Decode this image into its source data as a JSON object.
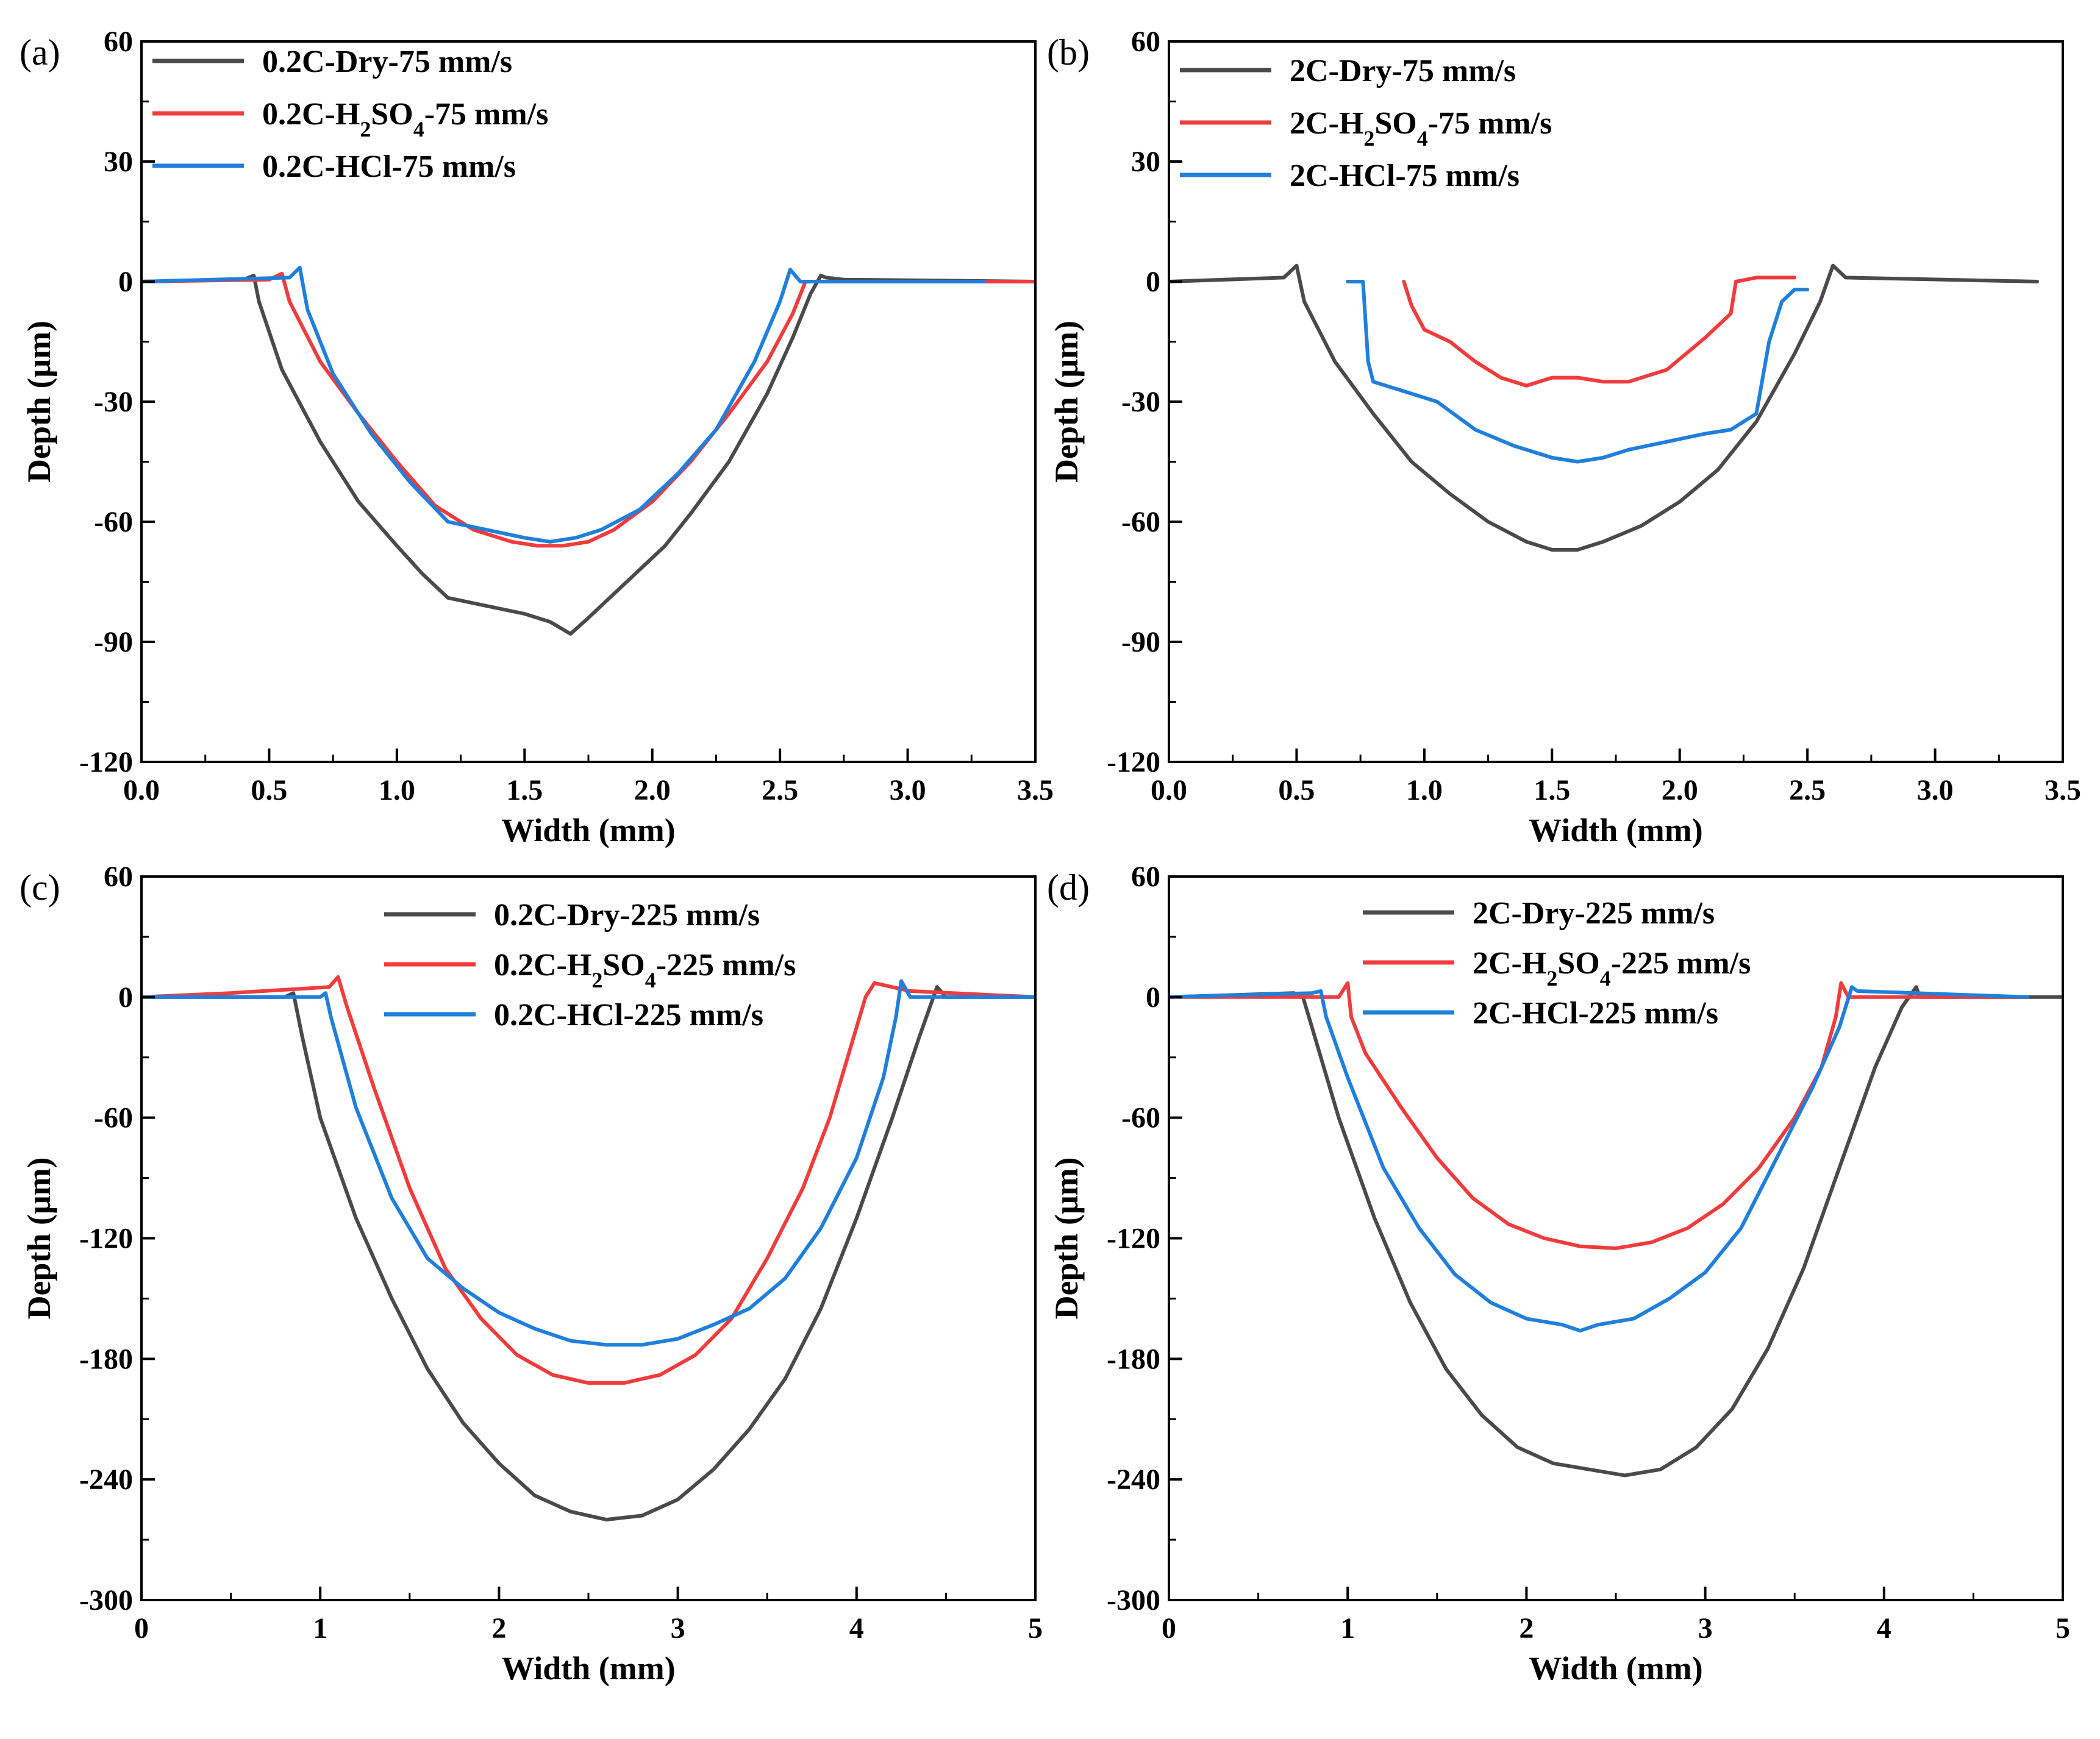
{
  "chart_data": [
    {
      "type": "line",
      "panel_label": "(a)",
      "xlabel": "Width (mm)",
      "ylabel": "Depth (μm)",
      "xlim": [
        0,
        3.5
      ],
      "ylim": [
        -120,
        60
      ],
      "xticks": [
        "0.0",
        "0.5",
        "1.0",
        "1.5",
        "2.0",
        "2.5",
        "3.0",
        "3.5"
      ],
      "xtick_values": [
        0,
        0.5,
        1.0,
        1.5,
        2.0,
        2.5,
        3.0,
        3.5
      ],
      "yticks": [
        "60",
        "30",
        "0",
        "-30",
        "-60",
        "-90",
        "-120"
      ],
      "ytick_values": [
        60,
        30,
        0,
        -30,
        -60,
        -90,
        -120
      ],
      "legend_position": "top-left",
      "series": [
        {
          "name": "0.2C-Dry-75 mm/s",
          "label_main": "0.2C-Dry-75 mm/s",
          "label_sub1": "",
          "label_mid": "",
          "label_sub2": "",
          "label_tail": "",
          "color": "#4a4a4a",
          "x": [
            0,
            0.4,
            0.44,
            0.46,
            0.55,
            0.7,
            0.85,
            1.0,
            1.1,
            1.2,
            1.35,
            1.5,
            1.6,
            1.68,
            1.75,
            1.85,
            1.95,
            2.05,
            2.15,
            2.3,
            2.45,
            2.55,
            2.62,
            2.66,
            2.68,
            2.75,
            3.5
          ],
          "y": [
            0,
            0.5,
            1.5,
            -5,
            -22,
            -40,
            -55,
            -66,
            -73,
            -79,
            -81,
            -83,
            -85,
            -88,
            -84,
            -78,
            -72,
            -66,
            -58,
            -45,
            -28,
            -14,
            -3,
            1.5,
            1,
            0.5,
            0
          ]
        },
        {
          "name": "0.2C-H2SO4-75 mm/s",
          "label_main": "0.2C-H",
          "label_sub1": "2",
          "label_mid": "SO",
          "label_sub2": "4",
          "label_tail": "-75 mm/s",
          "color": "#f03c3c",
          "x": [
            0,
            0.5,
            0.55,
            0.58,
            0.7,
            0.85,
            1.0,
            1.15,
            1.3,
            1.45,
            1.55,
            1.65,
            1.75,
            1.85,
            2.0,
            2.15,
            2.3,
            2.45,
            2.55,
            2.6,
            2.65,
            3.5
          ],
          "y": [
            0,
            0.5,
            2,
            -5,
            -20,
            -33,
            -45,
            -56,
            -62,
            -65,
            -66,
            -66,
            -65,
            -62,
            -55,
            -45,
            -33,
            -20,
            -8,
            0,
            0,
            0
          ]
        },
        {
          "name": "0.2C-HCl-75 mm/s",
          "label_main": "0.2C-HCl-75 mm/s",
          "label_sub1": "",
          "label_mid": "",
          "label_sub2": "",
          "label_tail": "",
          "color": "#1f7fdb",
          "x": [
            0,
            0.58,
            0.62,
            0.65,
            0.75,
            0.9,
            1.05,
            1.2,
            1.35,
            1.5,
            1.6,
            1.7,
            1.8,
            1.95,
            2.1,
            2.25,
            2.4,
            2.5,
            2.54,
            2.58,
            3.3
          ],
          "y": [
            0,
            1,
            3.5,
            -7,
            -23,
            -38,
            -50,
            -60,
            -62,
            -64,
            -65,
            -64,
            -62,
            -57,
            -48,
            -37,
            -20,
            -5,
            3,
            0,
            0
          ]
        }
      ]
    },
    {
      "type": "line",
      "panel_label": "(b)",
      "xlabel": "Width (mm)",
      "ylabel": "Depth (μm)",
      "xlim": [
        0,
        3.5
      ],
      "ylim": [
        -120,
        60
      ],
      "xticks": [
        "0.0",
        "0.5",
        "1.0",
        "1.5",
        "2.0",
        "2.5",
        "3.0",
        "3.5"
      ],
      "xtick_values": [
        0,
        0.5,
        1.0,
        1.5,
        2.0,
        2.5,
        3.0,
        3.5
      ],
      "yticks": [
        "60",
        "30",
        "0",
        "-30",
        "-60",
        "-90",
        "-120"
      ],
      "ytick_values": [
        60,
        30,
        0,
        -30,
        -60,
        -90,
        -120
      ],
      "legend_position": "top-left",
      "series": [
        {
          "name": "2C-Dry-75 mm/s",
          "label_main": "2C-Dry-75 mm/s",
          "label_sub1": "",
          "label_mid": "",
          "label_sub2": "",
          "label_tail": "",
          "color": "#4a4a4a",
          "x": [
            0,
            0.45,
            0.5,
            0.53,
            0.65,
            0.8,
            0.95,
            1.1,
            1.25,
            1.4,
            1.5,
            1.6,
            1.7,
            1.85,
            2.0,
            2.15,
            2.3,
            2.45,
            2.55,
            2.6,
            2.65,
            3.4
          ],
          "y": [
            0,
            1,
            4,
            -5,
            -20,
            -33,
            -45,
            -53,
            -60,
            -65,
            -67,
            -67,
            -65,
            -61,
            -55,
            -47,
            -35,
            -18,
            -5,
            4,
            1,
            0
          ]
        },
        {
          "name": "2C-H2SO4-75 mm/s",
          "label_main": "2C-H",
          "label_sub1": "2",
          "label_mid": "SO",
          "label_sub2": "4",
          "label_tail": "-75 mm/s",
          "color": "#f03c3c",
          "x": [
            0.92,
            0.95,
            1.0,
            1.1,
            1.2,
            1.3,
            1.4,
            1.5,
            1.6,
            1.7,
            1.8,
            1.95,
            2.1,
            2.2,
            2.22,
            2.3,
            2.45
          ],
          "y": [
            0,
            -6,
            -12,
            -15,
            -20,
            -24,
            -26,
            -24,
            -24,
            -25,
            -25,
            -22,
            -14,
            -8,
            0,
            1,
            1
          ]
        },
        {
          "name": "2C-HCl-75 mm/s",
          "label_main": "2C-HCl-75 mm/s",
          "label_sub1": "",
          "label_mid": "",
          "label_sub2": "",
          "label_tail": "",
          "color": "#1f7fdb",
          "x": [
            0.7,
            0.76,
            0.78,
            0.8,
            0.9,
            1.05,
            1.2,
            1.35,
            1.5,
            1.6,
            1.7,
            1.8,
            1.95,
            2.1,
            2.2,
            2.25,
            2.3,
            2.35,
            2.4,
            2.45,
            2.5
          ],
          "y": [
            0,
            0,
            -20,
            -25,
            -27,
            -30,
            -37,
            -41,
            -44,
            -45,
            -44,
            -42,
            -40,
            -38,
            -37,
            -35,
            -33,
            -15,
            -5,
            -2,
            -2
          ]
        }
      ]
    },
    {
      "type": "line",
      "panel_label": "(c)",
      "xlabel": "Width (mm)",
      "ylabel": "Depth (μm)",
      "xlim": [
        0,
        5
      ],
      "ylim": [
        -300,
        60
      ],
      "xticks": [
        "0",
        "1",
        "2",
        "3",
        "4",
        "5"
      ],
      "xtick_values": [
        0,
        1,
        2,
        3,
        4,
        5
      ],
      "yticks": [
        "60",
        "0",
        "-60",
        "-120",
        "-180",
        "-240",
        "-300"
      ],
      "ytick_values": [
        60,
        0,
        -60,
        -120,
        -180,
        -240,
        -300
      ],
      "legend_position": "top-center",
      "series": [
        {
          "name": "0.2C-Dry-225 mm/s",
          "label_main": "0.2C-Dry-225 mm/s",
          "label_sub1": "",
          "label_mid": "",
          "label_sub2": "",
          "label_tail": "",
          "color": "#4a4a4a",
          "x": [
            0,
            0.8,
            0.85,
            0.9,
            1.0,
            1.2,
            1.4,
            1.6,
            1.8,
            2.0,
            2.2,
            2.4,
            2.6,
            2.8,
            3.0,
            3.2,
            3.4,
            3.6,
            3.8,
            4.0,
            4.2,
            4.35,
            4.45,
            4.5,
            5
          ],
          "y": [
            0,
            0,
            2,
            -20,
            -60,
            -110,
            -150,
            -185,
            -212,
            -232,
            -248,
            -256,
            -260,
            -258,
            -250,
            -235,
            -215,
            -190,
            -155,
            -110,
            -60,
            -20,
            5,
            0,
            0
          ]
        },
        {
          "name": "0.2C-H2SO4-225 mm/s",
          "label_main": "0.2C-H",
          "label_sub1": "2",
          "label_mid": "SO",
          "label_sub2": "4",
          "label_tail": "-225 mm/s",
          "color": "#f03c3c",
          "x": [
            0,
            0.5,
            1.05,
            1.1,
            1.15,
            1.3,
            1.5,
            1.7,
            1.9,
            2.1,
            2.3,
            2.5,
            2.7,
            2.9,
            3.1,
            3.3,
            3.5,
            3.7,
            3.85,
            3.95,
            4.05,
            4.1,
            4.3,
            5
          ],
          "y": [
            0,
            2,
            5,
            10,
            -5,
            -45,
            -95,
            -135,
            -160,
            -178,
            -188,
            -192,
            -192,
            -188,
            -178,
            -160,
            -130,
            -95,
            -60,
            -30,
            0,
            7,
            3,
            0
          ]
        },
        {
          "name": "0.2C-HCl-225 mm/s",
          "label_main": "0.2C-HCl-225 mm/s",
          "label_sub1": "",
          "label_mid": "",
          "label_sub2": "",
          "label_tail": "",
          "color": "#1f7fdb",
          "x": [
            0,
            1.0,
            1.03,
            1.06,
            1.2,
            1.4,
            1.6,
            1.8,
            2.0,
            2.2,
            2.4,
            2.6,
            2.8,
            3.0,
            3.2,
            3.4,
            3.6,
            3.8,
            4.0,
            4.15,
            4.22,
            4.25,
            4.3,
            5
          ],
          "y": [
            0,
            0,
            2,
            -10,
            -55,
            -100,
            -130,
            -145,
            -157,
            -165,
            -171,
            -173,
            -173,
            -170,
            -163,
            -155,
            -140,
            -115,
            -80,
            -40,
            -10,
            8,
            0,
            0
          ]
        }
      ]
    },
    {
      "type": "line",
      "panel_label": "(d)",
      "xlabel": "Width (mm)",
      "ylabel": "Depth (μm)",
      "xlim": [
        0,
        5
      ],
      "ylim": [
        -300,
        60
      ],
      "xticks": [
        "0",
        "1",
        "2",
        "3",
        "4",
        "5"
      ],
      "xtick_values": [
        0,
        1,
        2,
        3,
        4,
        5
      ],
      "yticks": [
        "60",
        "0",
        "-60",
        "-120",
        "-180",
        "-240",
        "-300"
      ],
      "ytick_values": [
        60,
        0,
        -60,
        -120,
        -180,
        -240,
        -300
      ],
      "legend_position": "top-center",
      "series": [
        {
          "name": "2C-Dry-225 mm/s",
          "label_main": "2C-Dry-225 mm/s",
          "label_sub1": "",
          "label_mid": "",
          "label_sub2": "",
          "label_tail": "",
          "color": "#4a4a4a",
          "x": [
            0,
            0.7,
            0.75,
            0.8,
            0.95,
            1.15,
            1.35,
            1.55,
            1.75,
            1.95,
            2.15,
            2.35,
            2.55,
            2.75,
            2.95,
            3.15,
            3.35,
            3.55,
            3.75,
            3.95,
            4.1,
            4.18,
            4.2,
            5
          ],
          "y": [
            0,
            2,
            0,
            -15,
            -60,
            -110,
            -152,
            -185,
            -208,
            -224,
            -232,
            -235,
            -238,
            -235,
            -224,
            -205,
            -175,
            -135,
            -85,
            -35,
            -5,
            5,
            0,
            0
          ]
        },
        {
          "name": "2C-H2SO4-225 mm/s",
          "label_main": "2C-H",
          "label_sub1": "2",
          "label_mid": "SO",
          "label_sub2": "4",
          "label_tail": "-225 mm/s",
          "color": "#f03c3c",
          "x": [
            0,
            0.95,
            1.0,
            1.02,
            1.1,
            1.3,
            1.5,
            1.7,
            1.9,
            2.1,
            2.3,
            2.5,
            2.7,
            2.9,
            3.1,
            3.3,
            3.5,
            3.65,
            3.73,
            3.76,
            3.8,
            4.8
          ],
          "y": [
            0,
            0,
            7,
            -10,
            -28,
            -55,
            -80,
            -100,
            -113,
            -120,
            -124,
            -125,
            -122,
            -115,
            -103,
            -85,
            -60,
            -35,
            -10,
            7,
            0,
            0
          ]
        },
        {
          "name": "2C-HCl-225 mm/s",
          "label_main": "2C-HCl-225 mm/s",
          "label_sub1": "",
          "label_mid": "",
          "label_sub2": "",
          "label_tail": "",
          "color": "#1f7fdb",
          "x": [
            0,
            0.8,
            0.85,
            0.88,
            1.0,
            1.2,
            1.4,
            1.6,
            1.8,
            2.0,
            2.2,
            2.3,
            2.4,
            2.6,
            2.8,
            3.0,
            3.2,
            3.4,
            3.6,
            3.75,
            3.82,
            3.85,
            4.8
          ],
          "y": [
            0,
            2,
            3,
            -10,
            -40,
            -85,
            -115,
            -138,
            -152,
            -160,
            -163,
            -166,
            -163,
            -160,
            -150,
            -137,
            -115,
            -80,
            -45,
            -15,
            5,
            3,
            0
          ]
        }
      ]
    }
  ]
}
